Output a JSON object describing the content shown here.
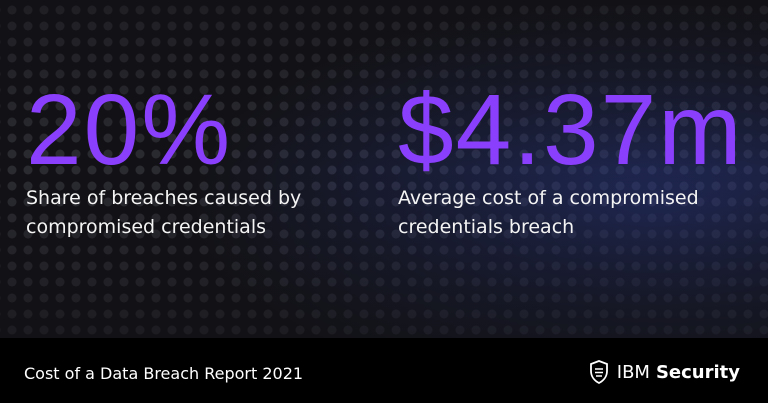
{
  "stats": [
    {
      "value": "20%",
      "caption": "Share of breaches caused by compromised credentials"
    },
    {
      "value": "$4.37m",
      "caption": "Average cost of a compromised credentials breach"
    }
  ],
  "footer": {
    "title": "Cost of a Data Breach Report 2021",
    "brand": "IBM",
    "product": "Security"
  }
}
